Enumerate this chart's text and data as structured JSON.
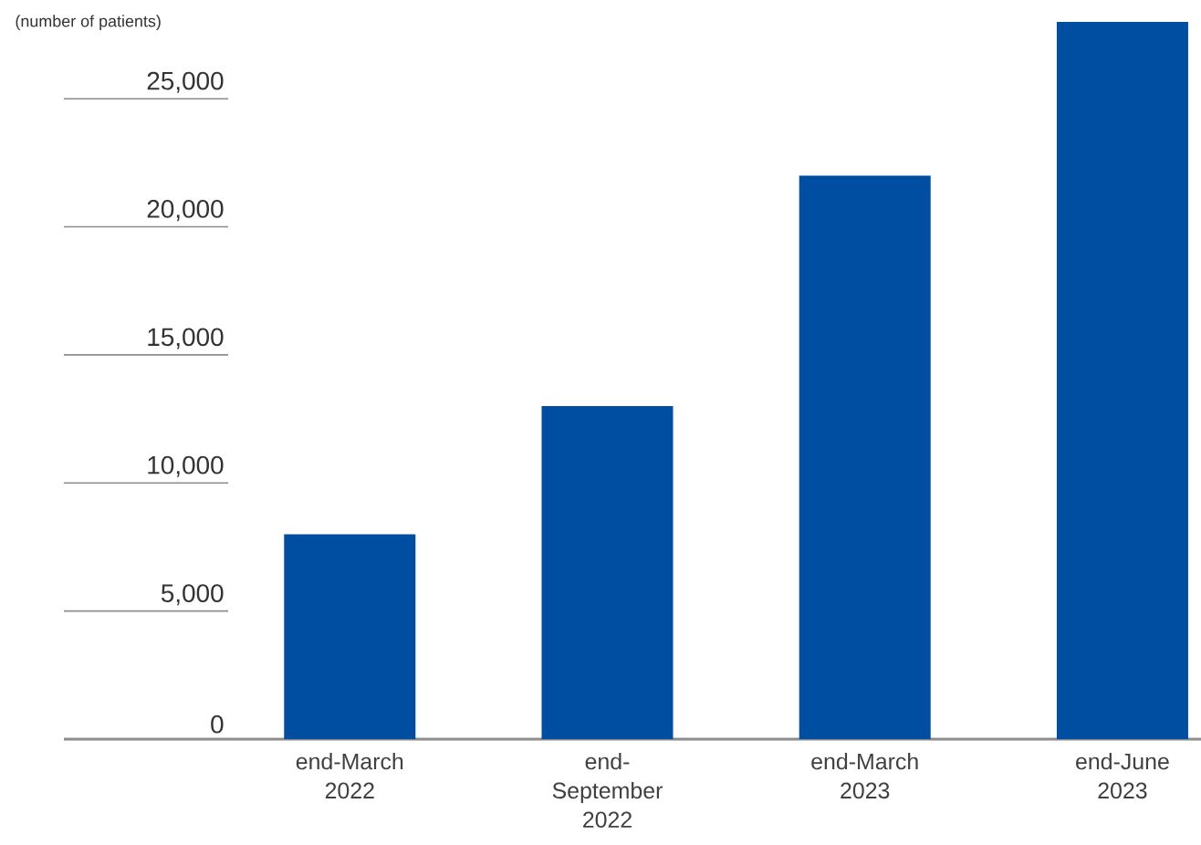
{
  "chart_data": {
    "type": "bar",
    "ylabel": "(number of patients)",
    "categories": [
      "end-March 2022",
      "end-September 2022",
      "end-March 2023",
      "end-June 2023"
    ],
    "values": [
      8000,
      13000,
      22000,
      28000
    ],
    "color": "#004ea2",
    "ylim": [
      0,
      28000
    ],
    "grid": "y",
    "yticks": [
      0,
      {
        "value": 5000,
        "label": "5,000"
      },
      {
        "value": 10000,
        "label": "10,000"
      },
      {
        "value": 15000,
        "label": "15,000"
      },
      {
        "value": 20000,
        "label": "20,000"
      },
      {
        "value": 25000,
        "label": "25,000"
      }
    ]
  }
}
